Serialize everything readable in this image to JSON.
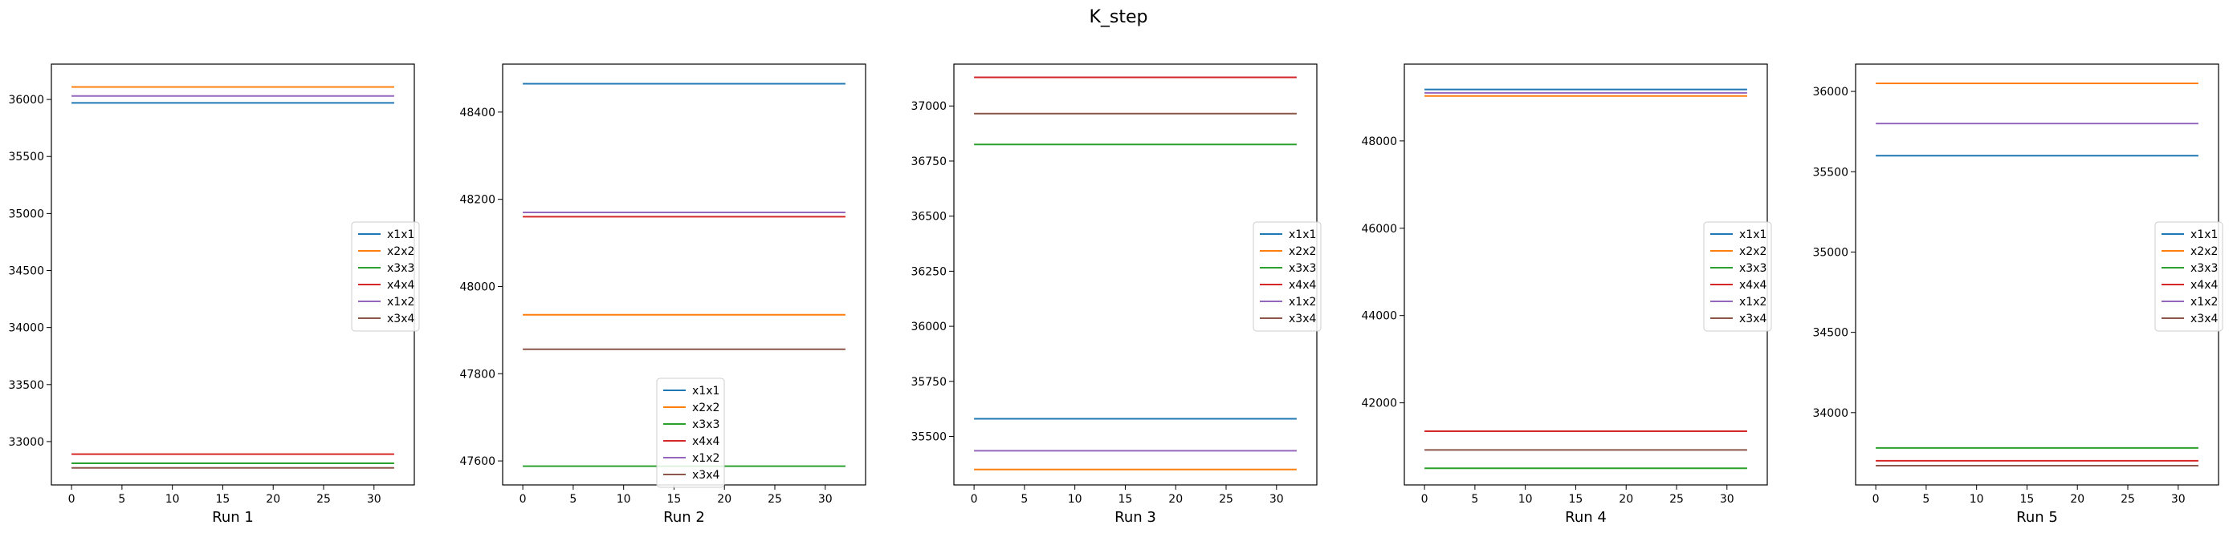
{
  "figure": {
    "title": "K_step"
  },
  "colors": {
    "x1x1": "#1f77b4",
    "x2x2": "#ff7f0e",
    "x3x3": "#2ca02c",
    "x4x4": "#d62728",
    "x1x2": "#9467bd",
    "x3x4": "#8c564b"
  },
  "chart_data": [
    {
      "type": "line",
      "title": "",
      "xlabel": "Run 1",
      "ylabel": "",
      "xlim": [
        -2,
        34
      ],
      "ylim": [
        32620,
        36310
      ],
      "xticks": [
        0,
        5,
        10,
        15,
        20,
        25,
        30
      ],
      "yticks": [
        33000,
        33500,
        34000,
        34500,
        35000,
        35500,
        36000
      ],
      "legend_position": "center-right",
      "x": [
        0,
        32
      ],
      "series": [
        {
          "name": "x1x1",
          "values": [
            35970,
            35970
          ]
        },
        {
          "name": "x2x2",
          "values": [
            36110,
            36110
          ]
        },
        {
          "name": "x3x3",
          "values": [
            32810,
            32810
          ]
        },
        {
          "name": "x4x4",
          "values": [
            32890,
            32890
          ]
        },
        {
          "name": "x1x2",
          "values": [
            36030,
            36030
          ]
        },
        {
          "name": "x3x4",
          "values": [
            32770,
            32770
          ]
        }
      ]
    },
    {
      "type": "line",
      "title": "",
      "xlabel": "Run 2",
      "ylabel": "",
      "xlim": [
        -2,
        34
      ],
      "ylim": [
        47545,
        48510
      ],
      "xticks": [
        0,
        5,
        10,
        15,
        20,
        25,
        30
      ],
      "yticks": [
        47600,
        47800,
        48000,
        48200,
        48400
      ],
      "legend_position": "lower-center",
      "x": [
        0,
        32
      ],
      "series": [
        {
          "name": "x1x1",
          "values": [
            48465,
            48465
          ]
        },
        {
          "name": "x2x2",
          "values": [
            47935,
            47935
          ]
        },
        {
          "name": "x3x3",
          "values": [
            47588,
            47588
          ]
        },
        {
          "name": "x4x4",
          "values": [
            48160,
            48160
          ]
        },
        {
          "name": "x1x2",
          "values": [
            48170,
            48170
          ]
        },
        {
          "name": "x3x4",
          "values": [
            47856,
            47856
          ]
        }
      ]
    },
    {
      "type": "line",
      "title": "",
      "xlabel": "Run 3",
      "ylabel": "",
      "xlim": [
        -2,
        34
      ],
      "ylim": [
        35280,
        37190
      ],
      "xticks": [
        0,
        5,
        10,
        15,
        20,
        25,
        30
      ],
      "yticks": [
        35500,
        35750,
        36000,
        36250,
        36500,
        36750,
        37000
      ],
      "legend_position": "center-right",
      "x": [
        0,
        32
      ],
      "series": [
        {
          "name": "x1x1",
          "values": [
            35580,
            35580
          ]
        },
        {
          "name": "x2x2",
          "values": [
            35350,
            35350
          ]
        },
        {
          "name": "x3x3",
          "values": [
            36825,
            36825
          ]
        },
        {
          "name": "x4x4",
          "values": [
            37130,
            37130
          ]
        },
        {
          "name": "x1x2",
          "values": [
            35435,
            35435
          ]
        },
        {
          "name": "x3x4",
          "values": [
            36965,
            36965
          ]
        }
      ]
    },
    {
      "type": "line",
      "title": "",
      "xlabel": "Run 4",
      "ylabel": "",
      "xlim": [
        -2,
        34
      ],
      "ylim": [
        40120,
        49760
      ],
      "xticks": [
        0,
        5,
        10,
        15,
        20,
        25,
        30
      ],
      "yticks": [
        42000,
        44000,
        46000,
        48000
      ],
      "legend_position": "center-right",
      "x": [
        0,
        32
      ],
      "series": [
        {
          "name": "x1x1",
          "values": [
            49180,
            49180
          ]
        },
        {
          "name": "x2x2",
          "values": [
            49030,
            49030
          ]
        },
        {
          "name": "x3x3",
          "values": [
            40500,
            40500
          ]
        },
        {
          "name": "x4x4",
          "values": [
            41350,
            41350
          ]
        },
        {
          "name": "x1x2",
          "values": [
            49100,
            49100
          ]
        },
        {
          "name": "x3x4",
          "values": [
            40920,
            40920
          ]
        }
      ]
    },
    {
      "type": "line",
      "title": "",
      "xlabel": "Run 5",
      "ylabel": "",
      "xlim": [
        -2,
        34
      ],
      "ylim": [
        33550,
        36170
      ],
      "xticks": [
        0,
        5,
        10,
        15,
        20,
        25,
        30
      ],
      "yticks": [
        34000,
        34500,
        35000,
        35500,
        36000
      ],
      "legend_position": "center-right",
      "x": [
        0,
        32
      ],
      "series": [
        {
          "name": "x1x1",
          "values": [
            35600,
            35600
          ]
        },
        {
          "name": "x2x2",
          "values": [
            36050,
            36050
          ]
        },
        {
          "name": "x3x3",
          "values": [
            33780,
            33780
          ]
        },
        {
          "name": "x4x4",
          "values": [
            33700,
            33700
          ]
        },
        {
          "name": "x1x2",
          "values": [
            35800,
            35800
          ]
        },
        {
          "name": "x3x4",
          "values": [
            33670,
            33670
          ]
        }
      ]
    }
  ]
}
